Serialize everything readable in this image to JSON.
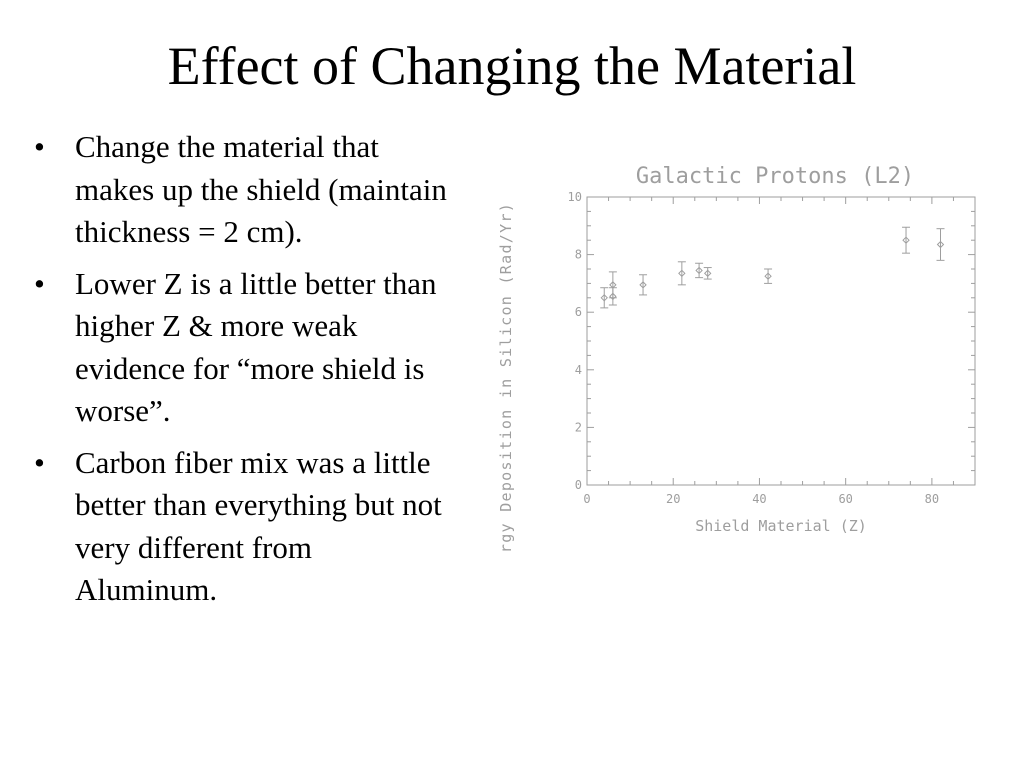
{
  "slide": {
    "title": "Effect of Changing the Material",
    "bullets": [
      "Change the material that makes up the shield (maintain thickness = 2 cm).",
      "Lower Z is a little better than higher Z & more weak evidence for “more shield is worse”.",
      "Carbon fiber mix was a little better than everything but not very different from Aluminum."
    ],
    "bullet_symbol": "•"
  },
  "chart_data": {
    "type": "scatter",
    "title": "Galactic Protons (L2)",
    "xlabel": "Shield Material (Z)",
    "ylabel": "Energy Deposition in Silicon (Rad/Yr)",
    "xlim": [
      0,
      90
    ],
    "ylim": [
      0,
      10
    ],
    "xticks": [
      0,
      20,
      40,
      60,
      80
    ],
    "yticks": [
      0,
      2,
      4,
      6,
      8,
      10
    ],
    "color": "#9e9e9e",
    "grid": false,
    "points": [
      {
        "x": 4,
        "y": 6.5,
        "err": 0.35
      },
      {
        "x": 6,
        "y": 6.95,
        "err": 0.45
      },
      {
        "x": 6,
        "y": 6.55,
        "err": 0.3
      },
      {
        "x": 13,
        "y": 6.95,
        "err": 0.35
      },
      {
        "x": 22,
        "y": 7.35,
        "err": 0.4
      },
      {
        "x": 26,
        "y": 7.45,
        "err": 0.25
      },
      {
        "x": 28,
        "y": 7.35,
        "err": 0.2
      },
      {
        "x": 42,
        "y": 7.25,
        "err": 0.25
      },
      {
        "x": 74,
        "y": 8.5,
        "err": 0.45
      },
      {
        "x": 82,
        "y": 8.35,
        "err": 0.55
      }
    ]
  }
}
